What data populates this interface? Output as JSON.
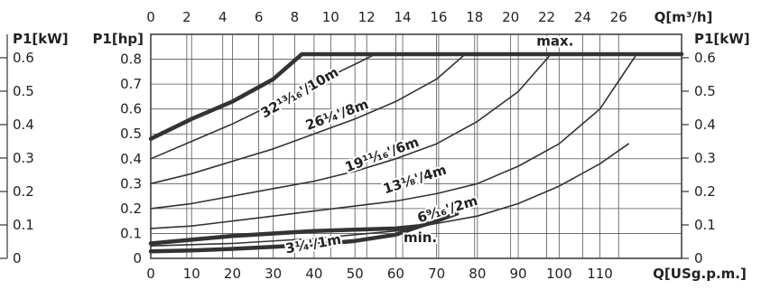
{
  "chart_data": {
    "type": "line",
    "axes": {
      "x_bottom": {
        "label": "Q[USg.p.m.]",
        "range": [
          0,
          130
        ],
        "ticks": [
          0,
          10,
          20,
          30,
          40,
          50,
          60,
          70,
          80,
          90,
          100,
          110
        ]
      },
      "x_top": {
        "label": "Q[m³/h]",
        "range": [
          0,
          29.5
        ],
        "ticks": [
          0,
          2,
          4,
          6,
          8,
          10,
          12,
          14,
          16,
          18,
          20,
          22,
          24,
          26
        ]
      },
      "y_left": {
        "label": "P1[hp]",
        "range": [
          0,
          0.9
        ],
        "ticks": [
          "0",
          "0.1",
          "0.2",
          "0.3",
          "0.4",
          "0.5",
          "0.6",
          "0.7",
          "0.8"
        ]
      },
      "y_right": {
        "label": "P1[kW]",
        "range": [
          0,
          0.67
        ],
        "ticks": [
          "0",
          "0.1",
          "0.2",
          "0.3",
          "0.4",
          "0.5",
          "0.6"
        ]
      },
      "y_left_outer": {
        "label": "P1[kW]",
        "ticks": [
          "0",
          "0.1",
          "0.2",
          "0.3",
          "0.4",
          "0.5",
          "0.6"
        ]
      }
    },
    "grid": true,
    "series": [
      {
        "name": "max.",
        "bold": true,
        "color": "#333333",
        "x": [
          0,
          10,
          20,
          30,
          37,
          130
        ],
        "y": [
          0.48,
          0.56,
          0.63,
          0.72,
          0.82,
          0.82
        ]
      },
      {
        "name": "32 13/16'/10m",
        "bold": false,
        "color": "#333333",
        "x": [
          0,
          10,
          20,
          30,
          40,
          50,
          55
        ],
        "y": [
          0.4,
          0.47,
          0.54,
          0.62,
          0.7,
          0.78,
          0.82
        ]
      },
      {
        "name": "26 1/4'/8m",
        "bold": false,
        "color": "#333333",
        "x": [
          0,
          10,
          20,
          30,
          40,
          50,
          60,
          70,
          77
        ],
        "y": [
          0.3,
          0.34,
          0.39,
          0.44,
          0.5,
          0.56,
          0.63,
          0.72,
          0.82
        ]
      },
      {
        "name": "19 11/16'/6m",
        "bold": false,
        "color": "#333333",
        "x": [
          0,
          10,
          20,
          30,
          40,
          50,
          60,
          70,
          80,
          90,
          98
        ],
        "y": [
          0.2,
          0.22,
          0.25,
          0.28,
          0.31,
          0.35,
          0.4,
          0.46,
          0.55,
          0.67,
          0.82
        ]
      },
      {
        "name": "13 1/8'/4m",
        "bold": false,
        "color": "#333333",
        "x": [
          0,
          10,
          20,
          30,
          40,
          50,
          60,
          70,
          80,
          90,
          100,
          110,
          119
        ],
        "y": [
          0.12,
          0.13,
          0.15,
          0.17,
          0.19,
          0.21,
          0.23,
          0.26,
          0.3,
          0.37,
          0.46,
          0.6,
          0.82
        ]
      },
      {
        "name": "6 9/16'/2m",
        "bold": false,
        "color": "#333333",
        "x": [
          0,
          20,
          40,
          60,
          70,
          80,
          90,
          100,
          110,
          117
        ],
        "y": [
          0.05,
          0.06,
          0.08,
          0.11,
          0.14,
          0.17,
          0.22,
          0.29,
          0.38,
          0.46
        ]
      },
      {
        "name": "3 1/4'/1m",
        "bold": true,
        "color": "#333333",
        "x": [
          0,
          10,
          20,
          30,
          40,
          50,
          60,
          66
        ],
        "y": [
          0.028,
          0.032,
          0.038,
          0.046,
          0.055,
          0.07,
          0.095,
          0.13
        ]
      },
      {
        "name": "min.",
        "bold": true,
        "color": "#333333",
        "x": [
          0,
          20,
          40,
          50,
          60,
          66,
          70,
          75
        ],
        "y": [
          0.06,
          0.09,
          0.11,
          0.115,
          0.12,
          0.13,
          0.15,
          0.18
        ]
      }
    ],
    "annotations": [
      {
        "text": "max.",
        "x": 99,
        "y": 0.855
      },
      {
        "text": "32¹³⁄₁₆'/10m",
        "x": 37,
        "y": 0.65,
        "angle": -30
      },
      {
        "text": "26¹⁄₄'/8m",
        "x": 46,
        "y": 0.56,
        "angle": -20
      },
      {
        "text": "19¹¹⁄₁₆'/6m",
        "x": 57,
        "y": 0.4,
        "angle": -20
      },
      {
        "text": "13¹⁄₈'/4m",
        "x": 65,
        "y": 0.3,
        "angle": -18
      },
      {
        "text": "6⁹⁄₁₆'/2m",
        "x": 73,
        "y": 0.18,
        "angle": -17
      },
      {
        "text": "3¹⁄₄'/1m",
        "x": 40,
        "y": 0.04,
        "angle": -10
      },
      {
        "text": "min.",
        "x": 66,
        "y": 0.065
      }
    ]
  }
}
